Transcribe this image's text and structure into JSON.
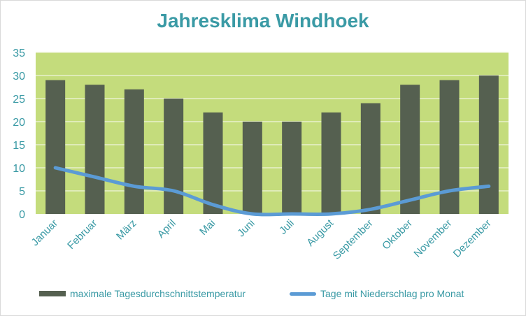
{
  "chart_data": {
    "type": "bar+line",
    "title": "Jahresklima Windhoek",
    "categories": [
      "Januar",
      "Februar",
      "März",
      "April",
      "Mai",
      "Juni",
      "Juli",
      "August",
      "September",
      "Oktober",
      "November",
      "Dezember"
    ],
    "series": [
      {
        "name": "maximale Tagesdurchschnittstemperatur",
        "type": "bar",
        "color": "#556050",
        "values": [
          29,
          28,
          27,
          25,
          22,
          20,
          20,
          22,
          24,
          28,
          29,
          30
        ]
      },
      {
        "name": "Tage mit Niederschlag pro Monat",
        "type": "line",
        "color": "#5b9bd5",
        "values": [
          10,
          8,
          6,
          5,
          2,
          0,
          0,
          0,
          1,
          3,
          5,
          6
        ]
      }
    ],
    "ylim": [
      0,
      35
    ],
    "yticks": [
      0,
      5,
      10,
      15,
      20,
      25,
      30,
      35
    ],
    "grid": true,
    "legend": "bottom",
    "colors": {
      "plot_background": "#c4dc7c",
      "gridline": "#e8f0cc",
      "axis_text": "#3a9aa5",
      "title": "#3a9aa5"
    }
  }
}
